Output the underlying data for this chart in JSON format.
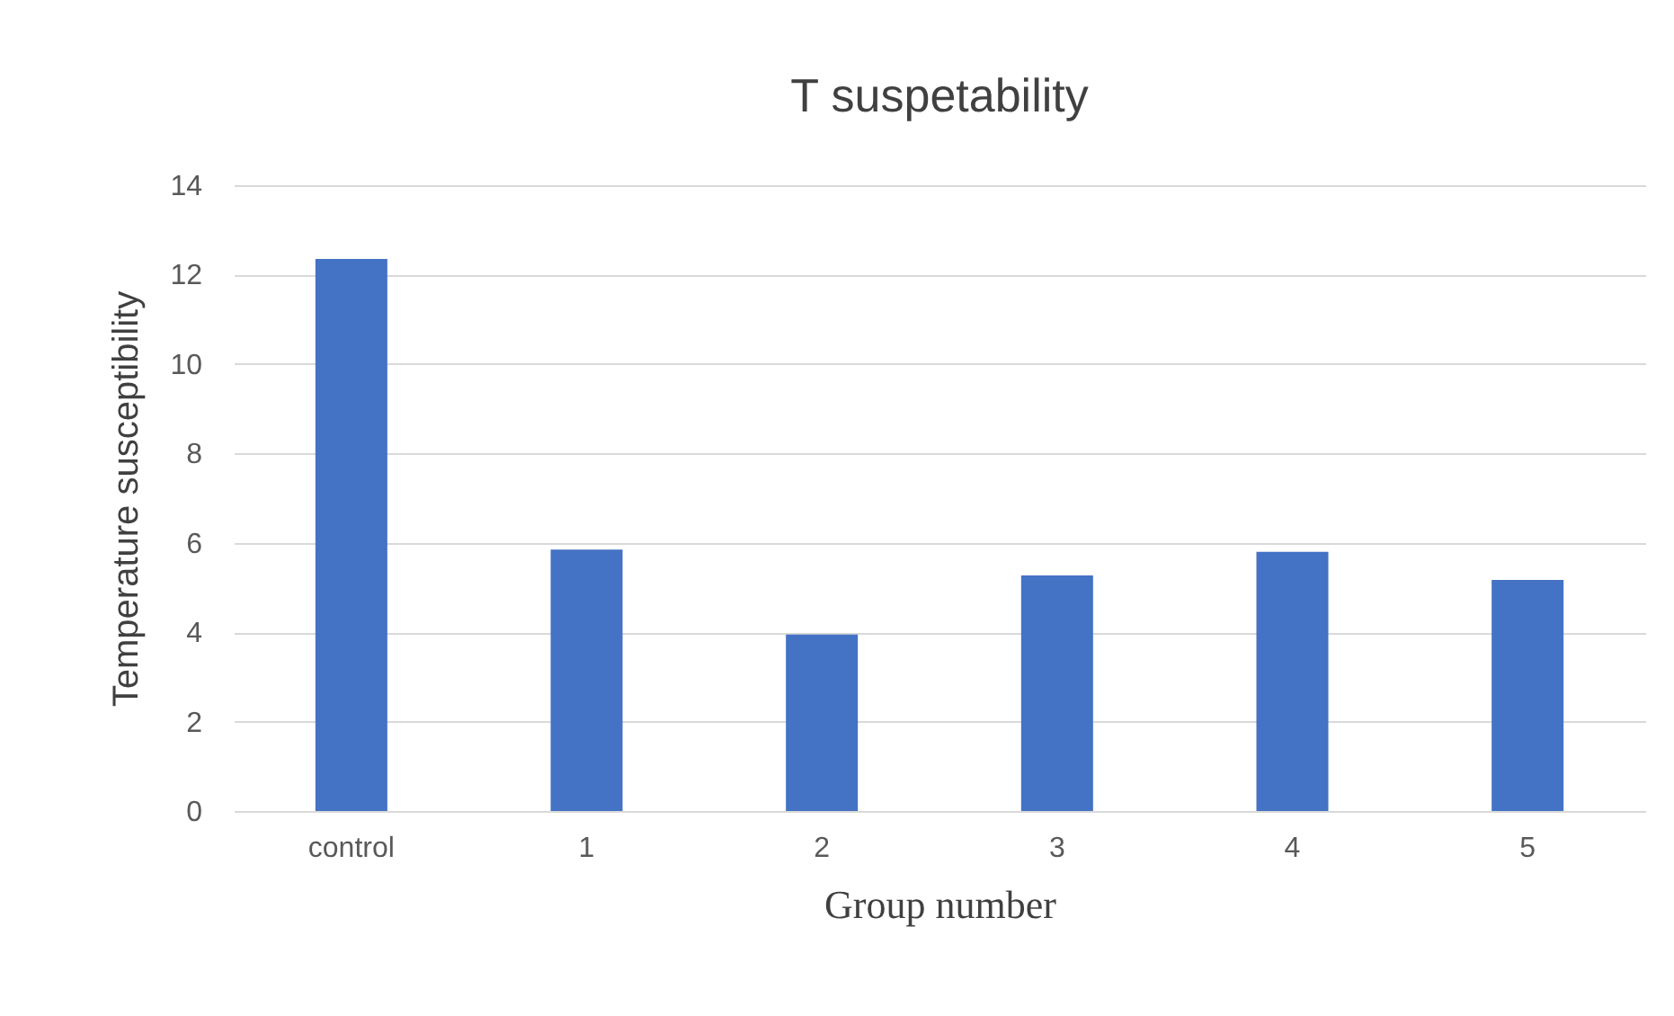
{
  "chart_data": {
    "type": "bar",
    "title": "T suspetability",
    "xlabel": "Group number",
    "ylabel": "Temperature susceptibility",
    "categories": [
      "control",
      "1",
      "2",
      "3",
      "4",
      "5"
    ],
    "values": [
      12.35,
      5.85,
      3.95,
      5.27,
      5.8,
      5.17
    ],
    "color": "#4472c4",
    "ylim": [
      0,
      14
    ],
    "yticks": [
      0,
      2,
      4,
      6,
      8,
      10,
      12,
      14
    ],
    "grid": "y"
  }
}
